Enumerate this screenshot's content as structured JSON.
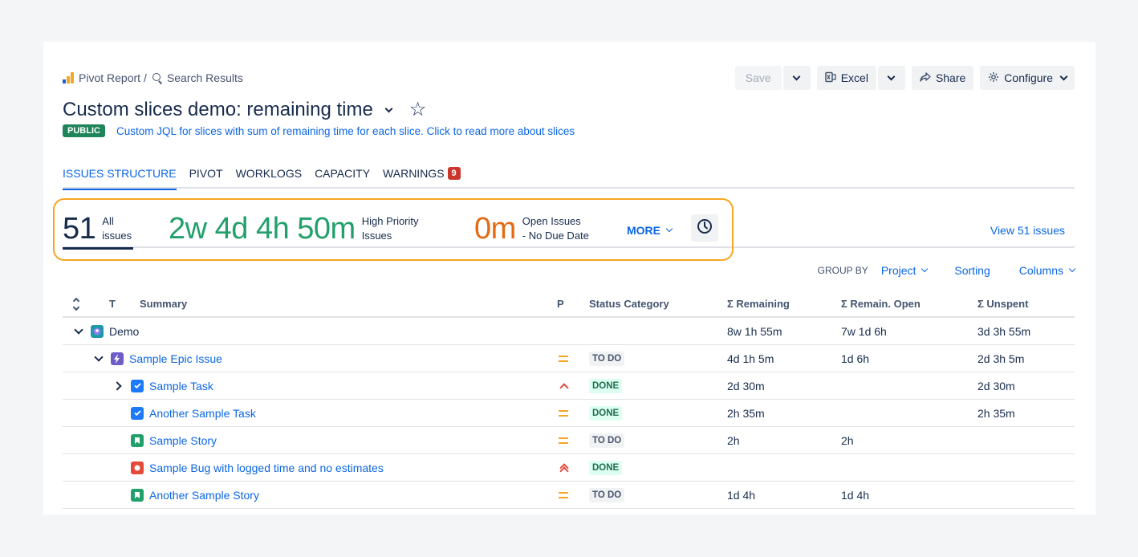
{
  "breadcrumb": {
    "pivot_report": "Pivot Report",
    "separator": "/",
    "search_results": "Search Results"
  },
  "toolbar": {
    "save": "Save",
    "excel": "Excel",
    "share": "Share",
    "configure": "Configure"
  },
  "header": {
    "title": "Custom slices demo: remaining time",
    "badge": "PUBLIC",
    "description": "Custom JQL for slices with sum of remaining time for each slice. Click to read more about slices"
  },
  "tabs": {
    "issues_structure": "ISSUES STRUCTURE",
    "pivot": "PIVOT",
    "worklogs": "WORKLOGS",
    "capacity": "CAPACITY",
    "warnings": "WARNINGS",
    "warnings_count": "9"
  },
  "stats": {
    "all_count": "51",
    "all_label_1": "All",
    "all_label_2": "issues",
    "high_value": "2w 4d 4h 50m",
    "high_label_1": "High Priority",
    "high_label_2": "Issues",
    "open_value": "0m",
    "open_label_1": "Open Issues",
    "open_label_2": "- No Due Date",
    "more": "MORE",
    "view_issues": "View 51 issues"
  },
  "controls": {
    "group_by_label": "GROUP BY",
    "group_by_value": "Project",
    "sorting": "Sorting",
    "columns": "Columns"
  },
  "table": {
    "headers": {
      "t": "T",
      "summary": "Summary",
      "p": "P",
      "status": "Status Category",
      "remaining": "Σ Remaining",
      "remain_open": "Σ Remain. Open",
      "unspent": "Σ Unspent"
    },
    "rows": [
      {
        "summary": "Demo",
        "status": "",
        "remaining": "8w 1h 55m",
        "remain_open": "7w 1d 6h",
        "unspent": "3d 3h 55m"
      },
      {
        "summary": "Sample Epic Issue",
        "status": "TO DO",
        "remaining": "4d 1h 5m",
        "remain_open": "1d 6h",
        "unspent": "2d 3h 5m"
      },
      {
        "summary": "Sample Task",
        "status": "DONE",
        "remaining": "2d 30m",
        "remain_open": "",
        "unspent": "2d 30m"
      },
      {
        "summary": "Another Sample Task",
        "status": "DONE",
        "remaining": "2h 35m",
        "remain_open": "",
        "unspent": "2h 35m"
      },
      {
        "summary": "Sample Story",
        "status": "TO DO",
        "remaining": "2h",
        "remain_open": "2h",
        "unspent": ""
      },
      {
        "summary": "Sample Bug with logged time and no estimates",
        "status": "DONE",
        "remaining": "",
        "remain_open": "",
        "unspent": ""
      },
      {
        "summary": "Another Sample Story",
        "status": "TO DO",
        "remaining": "1d 4h",
        "remain_open": "1d 4h",
        "unspent": ""
      }
    ]
  },
  "colors": {
    "link": "#0c66e4",
    "green_stat": "#22a06b",
    "orange_stat": "#e56910",
    "highlight_border": "#f5a623",
    "public_badge": "#1f845a",
    "warnings_badge": "#c9372c"
  }
}
